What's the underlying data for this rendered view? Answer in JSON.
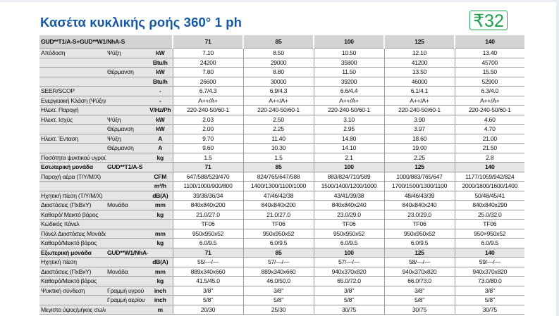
{
  "title": "Κασέτα κυκλικής ροής 360° 1 ph",
  "badge": {
    "symbol": "₹",
    "text": "32",
    "color": "#1aa34a",
    "icon": "r32-refrigerant-leaf-logo"
  },
  "colors": {
    "title": "#1558a6",
    "header_bg": "#d2d3d5",
    "label_bg": "#e4e5e7"
  },
  "header": {
    "model": "GUD**T1/A-S+GUD**W1/NhA-S",
    "columns": [
      "71",
      "85",
      "100",
      "125",
      "140"
    ]
  },
  "rows": [
    {
      "label": "Απόδοση",
      "sub": "Ψύξη",
      "unit": "kW",
      "values": [
        "7.10",
        "8.50",
        "10.50",
        "12.10",
        "13.40"
      ]
    },
    {
      "label": "",
      "sub": "",
      "unit": "Btu/h",
      "values": [
        "24200",
        "29000",
        "35800",
        "41200",
        "45700"
      ]
    },
    {
      "label": "",
      "sub": "Θέρμανση",
      "unit": "kW",
      "values": [
        "7.80",
        "8.80",
        "11.50",
        "13.50",
        "15.50"
      ]
    },
    {
      "label": "",
      "sub": "",
      "unit": "Btu/h",
      "values": [
        "26600",
        "30000",
        "39200",
        "46000",
        "52900"
      ]
    },
    {
      "label": "SEER/SCOP",
      "sub": "",
      "unit": "-",
      "values": [
        "6.7/4.3",
        "6.9/4.3",
        "6.6/4.4",
        "6.1/4.1",
        "6.3/4.0"
      ]
    },
    {
      "label": "Ενεργειακή Κλάση (Ψύξη/Θέρμανση)",
      "sub": "",
      "unit": "-",
      "values": [
        "A++/A+",
        "A++/A+",
        "A++/A+",
        "A++/A+",
        "A++/A+"
      ]
    },
    {
      "label": "Ηλεκτ. Παροχή",
      "sub": "",
      "unit": "V/Hz/Ph",
      "values": [
        "220-240-50/60-1",
        "220-240-50/60-1",
        "220-240-50/60-1",
        "220-240-50/60-1",
        "220-240-50/60-1"
      ]
    },
    {
      "label": "Ηλεκτ. Ισχύς",
      "sub": "Ψύξη",
      "unit": "kW",
      "values": [
        "2.03",
        "2.50",
        "3.10",
        "3.90",
        "4.60"
      ]
    },
    {
      "label": "",
      "sub": "Θέρμανση",
      "unit": "kW",
      "values": [
        "2.00",
        "2.25",
        "2.95",
        "3.97",
        "4.70"
      ]
    },
    {
      "label": "Ηλεκτ. Ένταση",
      "sub": "Ψύξη",
      "unit": "A",
      "values": [
        "9.70",
        "11.40",
        "14.80",
        "18.60",
        "21.00"
      ]
    },
    {
      "label": "",
      "sub": "Θέρμανση",
      "unit": "A",
      "values": [
        "9.60",
        "10.30",
        "14.10",
        "19.00",
        "21.50"
      ]
    },
    {
      "label": "Ποσότητα ψυκτικού υγρού R32",
      "sub": "",
      "unit": "kg",
      "values": [
        "1.5",
        "1.5",
        "2.1",
        "2.25",
        "2.8"
      ]
    },
    {
      "section": true,
      "label": "Εσωτερική μονάδα",
      "sub": "GUD**T1/A-S",
      "unit": "",
      "values": [
        "71",
        "85",
        "100",
        "125",
        "140"
      ]
    },
    {
      "label": "Παροχή αέρα (T/Y/M/X)",
      "sub": "",
      "unit": "CFM",
      "values": [
        "647/588/529/470",
        "824/765/647/588",
        "883/824/710/589",
        "1000/883/765/647",
        "1177/1059/942/824"
      ]
    },
    {
      "label": "",
      "sub": "",
      "unit": "m³/h",
      "values": [
        "1100/1000/900/800",
        "1400/1300/1100/1000",
        "1500/1400/1200/1000",
        "1700/1500/1300/1100",
        "2000/1800/1600/1400"
      ]
    },
    {
      "label": "Ηχητική πίεση (T/Y/M/X)",
      "sub": "",
      "unit": "dB(A)",
      "values": [
        "39/38/36/34",
        "47/46/42/38",
        "43/41/39/38",
        "48/46/43/39",
        "50/48/45/41"
      ]
    },
    {
      "label": "Διαστάσεις (ΠxΒxΥ)",
      "sub": "Μονάδα",
      "unit": "mm",
      "values": [
        "840x840x200",
        "840x840x200",
        "840x840x240",
        "840x840x240",
        "840x840x290"
      ]
    },
    {
      "label": "Καθαρό/ Μεικτό βάρος",
      "sub": "",
      "unit": "kg",
      "values": [
        "21.0/27.0",
        "21.0/27.0",
        "23.0/29.0",
        "23.0/29.0",
        "25.0/32.0"
      ]
    },
    {
      "label": "Κωδικός πάνελ",
      "sub": "",
      "unit": "",
      "values": [
        "TF06",
        "TF06",
        "TF06",
        "TF06",
        "TF06"
      ]
    },
    {
      "label": "Πάνελ Διαστάσεις Μονάδας (ΠxΒxΥ)",
      "sub": "",
      "unit": "mm",
      "values": [
        "950x950x52",
        "950x950x52",
        "950x950x52",
        "950x950x52",
        "950×950x52"
      ]
    },
    {
      "label": "Καθαρό/Μεικτό βάρος",
      "sub": "",
      "unit": "kg",
      "values": [
        "6.0/9.5",
        "6.0/9.5",
        "6.0/9.5",
        "6.0/9.5",
        "6.0/9.5"
      ]
    },
    {
      "section": true,
      "label": "Εξωτερική μονάδα",
      "sub": "GUD**W1/NhA-S",
      "unit": "",
      "values": [
        "71",
        "85",
        "100",
        "125",
        "140"
      ]
    },
    {
      "label": "Ηχητική πίεση",
      "sub": "",
      "unit": "dB(A)",
      "values": [
        "55/—/—",
        "57/—/—",
        "57/—/—",
        "58/—/—",
        "59/—/—"
      ]
    },
    {
      "label": "Διαστάσεις (ΠxΒxΥ)",
      "sub": "Μονάδα",
      "unit": "mm",
      "values": [
        "889x340x660",
        "889x340x660",
        "940x370x820",
        "940x370x820",
        "940x370x820"
      ]
    },
    {
      "label": "Καθαρό/Μεικτό βάρος",
      "sub": "",
      "unit": "kg",
      "values": [
        "41.5/45.0",
        "46.0/50.0",
        "65.0/72.0",
        "66.0/73.0",
        "73.0/80.0"
      ]
    },
    {
      "label": "Ψυκτική σύνδεση",
      "sub": "Γραμμή υγρού",
      "unit": "inch",
      "values": [
        "3/8\"",
        "3/8\"",
        "3/8\"",
        "3/8\"",
        "3/8\""
      ]
    },
    {
      "label": "",
      "sub": "Γραμμή αερίου",
      "unit": "inch",
      "values": [
        "5/8\"",
        "5/8\"",
        "5/8\"",
        "5/8\"",
        "5/8\""
      ]
    },
    {
      "label": "Μεγιστο ύψος/μήκος σωληνώσεων",
      "sub": "",
      "unit": "m",
      "values": [
        "20/30",
        "25/30",
        "30/75",
        "30/75",
        "30/75"
      ]
    }
  ]
}
